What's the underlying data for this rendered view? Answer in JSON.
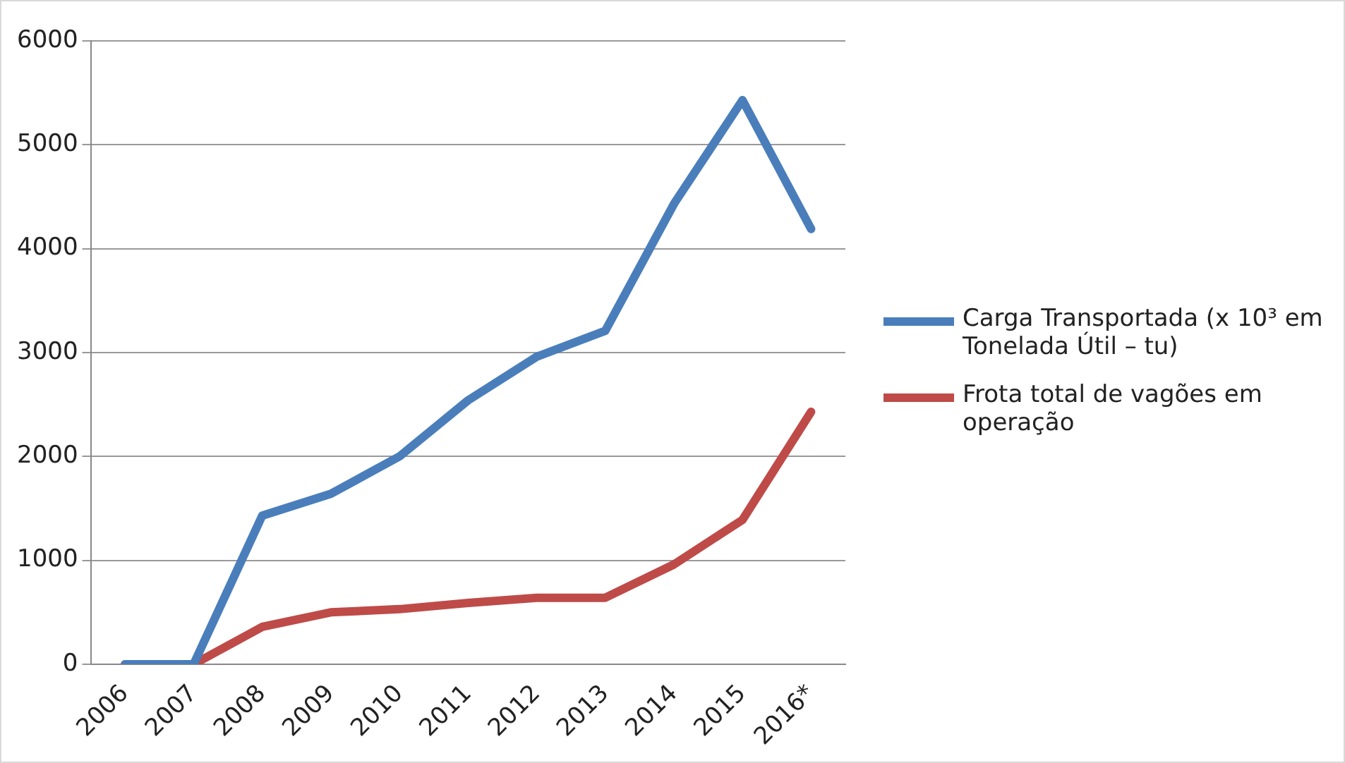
{
  "chart_data": {
    "type": "line",
    "categories": [
      "2006",
      "2007",
      "2008",
      "2009",
      "2010",
      "2011",
      "2012",
      "2013",
      "2014",
      "2015",
      "2016*"
    ],
    "series": [
      {
        "name": "Carga Transportada (x 10³ em Tonelada Útil – tu)",
        "color": "#4a7ebb",
        "values": [
          0,
          0,
          1430,
          1640,
          2000,
          2540,
          2960,
          3210,
          4430,
          5430,
          4190
        ]
      },
      {
        "name": "Frota total de vagões em operação",
        "color": "#be4b48",
        "values": [
          0,
          0,
          360,
          500,
          530,
          590,
          640,
          640,
          960,
          1390,
          2430
        ]
      }
    ],
    "ylim": [
      0,
      6000
    ],
    "yticks": [
      0,
      1000,
      2000,
      3000,
      4000,
      5000,
      6000
    ],
    "grid": "y",
    "legend": "right",
    "marker": "none",
    "line_style": "solid"
  }
}
